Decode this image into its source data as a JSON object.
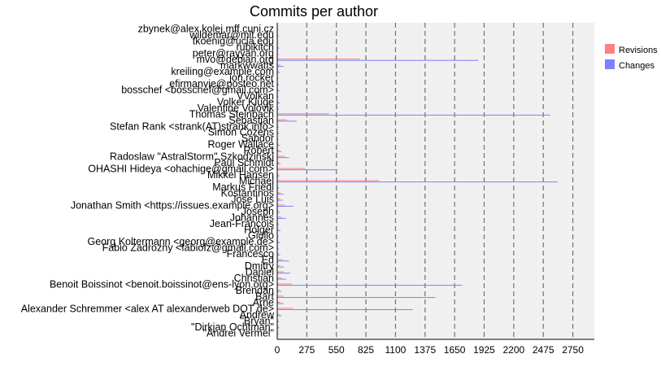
{
  "chart_data": {
    "type": "bar",
    "orientation": "horizontal",
    "title": "Commits per author",
    "xlabel": "",
    "ylabel": "",
    "xlim": [
      0,
      2950
    ],
    "xticks": [
      0,
      275,
      550,
      825,
      1100,
      1375,
      1650,
      1925,
      2200,
      2475,
      2750
    ],
    "grid": "vertical-dashed",
    "legend_position": "top-right",
    "legend": [
      {
        "name": "Revisions",
        "color": "#ff8080"
      },
      {
        "name": "Changes",
        "color": "#8080ff"
      }
    ],
    "categories": [
      "zbynek@alex.kolej.mff.cuni.cz",
      "wildemar@mit.edu",
      "tkoenig@ucla.edu",
      "rubikitch",
      "peter@rayyan.org",
      "mvo@debian.org",
      "markwwatts",
      "kreiling@example.com",
      "jon.rocker",
      "efirmanvie@posteo.net",
      "bosschef <bosschef@gmail.com>",
      "VVolkan",
      "Volker Kluge",
      "Valentine Volovik",
      "Thomas Steinbach",
      "Sebastian",
      "Stefan Rank <strank(AT)strank.info>",
      "Simon Cozens",
      "Sandor",
      "Roger Wallace",
      "Robert",
      "Radoslaw \"AstralStorm\" Szkodzinski",
      "Paul Schmidt",
      "OHASHI Hideya <ohachige@gmail.com>",
      "Mikkel Hansen",
      "Michael",
      "Markus Friedl",
      "Kostantinos",
      "Jose Luis",
      "Jonathan Smith <https://issues.example.org>",
      "Joseph",
      "Johannes",
      "Jean-Francois",
      "Holger",
      "Giulio",
      "Georg Koltermann <georg@example.de>",
      "Fabio Zadrozny <fabiofz@gmail.com>",
      "Francesco",
      "Ed",
      "Dmitry",
      "Daniel",
      "Christian",
      "Benoit Boissinot <benoit.boissinot@ens-lyon.org>",
      "Brendan",
      "Bart",
      "Arne",
      "Alexander Schremmer <alex AT alexanderweb DOT de>",
      "Andrew",
      "\"Bryan\"",
      "\"Dirkjan Ochtman\"",
      "\"Andrei Vermel\""
    ],
    "series": [
      {
        "name": "Revisions",
        "values": [
          4,
          6,
          3,
          9,
          5,
          770,
          30,
          12,
          5,
          8,
          10,
          6,
          12,
          7,
          480,
          90,
          6,
          9,
          5,
          12,
          20,
          70,
          15,
          260,
          10,
          950,
          8,
          30,
          25,
          70,
          12,
          40,
          8,
          15,
          6,
          12,
          8,
          14,
          55,
          30,
          60,
          40,
          140,
          20,
          60,
          30,
          150,
          20,
          8,
          10,
          6
        ]
      },
      {
        "name": "Changes",
        "values": [
          8,
          12,
          6,
          18,
          10,
          1870,
          60,
          25,
          10,
          15,
          20,
          12,
          25,
          15,
          2540,
          180,
          12,
          18,
          10,
          25,
          40,
          110,
          30,
          560,
          20,
          2610,
          15,
          60,
          50,
          150,
          25,
          80,
          15,
          30,
          12,
          25,
          15,
          28,
          110,
          60,
          120,
          80,
          1720,
          40,
          1470,
          60,
          1260,
          40,
          15,
          20,
          12
        ]
      }
    ]
  }
}
